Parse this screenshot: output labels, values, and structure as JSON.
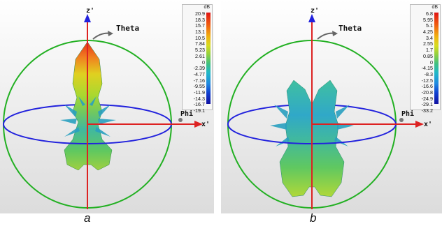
{
  "figure": {
    "panels": [
      {
        "label": "a",
        "axes": {
          "z": "z'",
          "x": "x'",
          "theta": "Theta",
          "phi": "Phi"
        },
        "legend": {
          "unit": "dB",
          "ticks": [
            "20.9",
            "18.3",
            "15.7",
            "13.1",
            "10.5",
            "7.84",
            "5.23",
            "2.61",
            "0",
            "-2.39",
            "-4.77",
            "-7.16",
            "-9.55",
            "-11.9",
            "-14.3",
            "-16.7",
            "-19.1"
          ]
        }
      },
      {
        "label": "b",
        "axes": {
          "z": "z'",
          "x": "x'",
          "theta": "Theta",
          "phi": "Phi"
        },
        "legend": {
          "unit": "dB",
          "ticks": [
            "6.8",
            "5.95",
            "5.1",
            "4.25",
            "3.4",
            "2.55",
            "1.7",
            "0.85",
            "0",
            "-4.15",
            "-8.3",
            "-12.5",
            "-16.6",
            "-20.8",
            "-24.9",
            "-29.1",
            "-33.2"
          ]
        }
      }
    ]
  },
  "colors": {
    "sphere": "#22b022",
    "equator": "#2222dd",
    "z_axis": "#dd2222",
    "x_axis": "#dd2222",
    "theta_arrow": "#666666"
  }
}
